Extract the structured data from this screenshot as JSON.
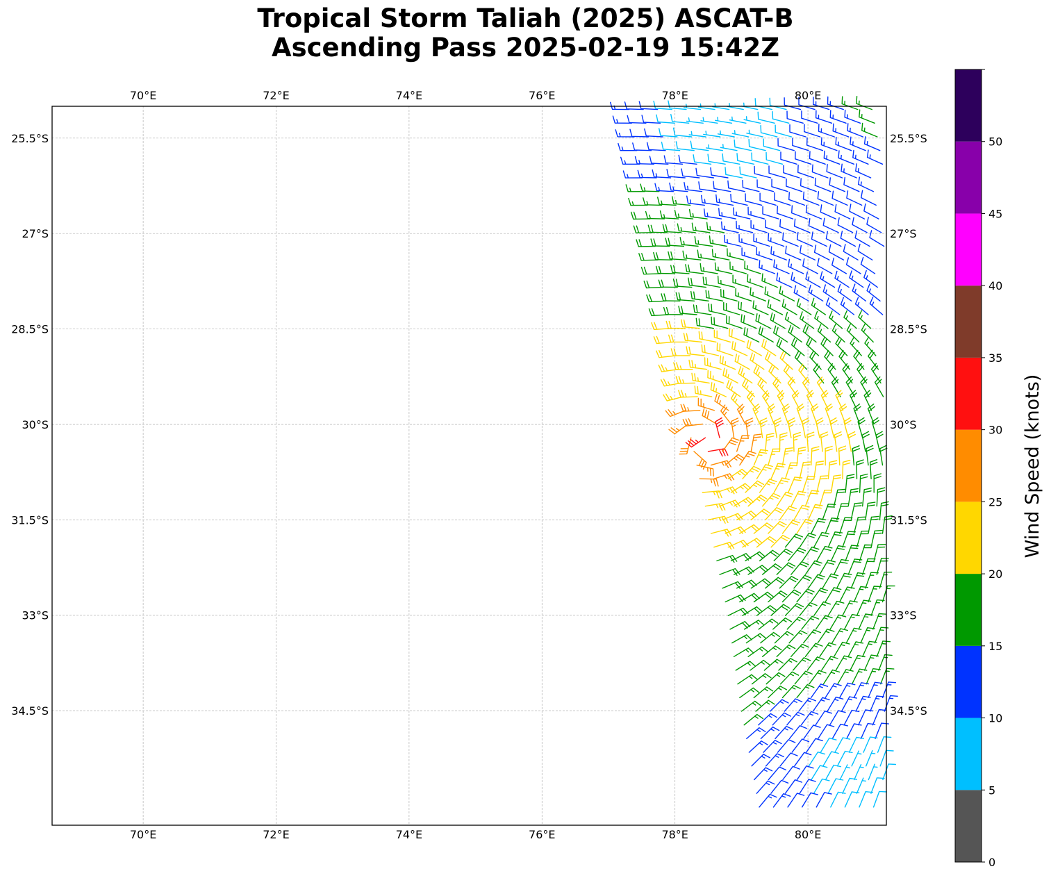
{
  "title": {
    "line1": "Tropical Storm Taliah (2025) ASCAT-B",
    "line2": "Ascending Pass 2025-02-19 15:42Z"
  },
  "map": {
    "lon_range": [
      68.63,
      81.18
    ],
    "lat_range": [
      -36.3,
      -25.0
    ],
    "lon_ticks": [
      {
        "value": 70,
        "label": "70°E"
      },
      {
        "value": 72,
        "label": "72°E"
      },
      {
        "value": 74,
        "label": "74°E"
      },
      {
        "value": 76,
        "label": "76°E"
      },
      {
        "value": 78,
        "label": "78°E"
      },
      {
        "value": 80,
        "label": "80°E"
      }
    ],
    "lat_ticks": [
      {
        "value": -25.5,
        "label": "25.5°S"
      },
      {
        "value": -27.0,
        "label": "27°S"
      },
      {
        "value": -28.5,
        "label": "28.5°S"
      },
      {
        "value": -30.0,
        "label": "30°S"
      },
      {
        "value": -31.5,
        "label": "31.5°S"
      },
      {
        "value": -33.0,
        "label": "33°S"
      },
      {
        "value": -34.5,
        "label": "34.5°S"
      }
    ],
    "gridlines": true,
    "gridline_style": "dashed",
    "swath": {
      "description_from_pixels": "ASCAT-B swath covering the eastern part of the map",
      "west_edge": [
        {
          "lat": -25.0,
          "lon": 77.3
        },
        {
          "lat": -28.0,
          "lon": 77.85
        },
        {
          "lat": -30.0,
          "lon": 78.2
        },
        {
          "lat": -31.5,
          "lon": 78.5
        },
        {
          "lat": -33.0,
          "lon": 78.8
        },
        {
          "lat": -34.5,
          "lon": 79.0
        },
        {
          "lat": -36.2,
          "lon": 79.3
        }
      ],
      "east_edge_lon": 81.18
    },
    "wind_regions": [
      {
        "name": "center",
        "lat": -30.25,
        "lon": 78.5
      },
      {
        "name": "northwest",
        "lat": -26.8,
        "lon": 77.9
      },
      {
        "name": "north",
        "lat": -25.2,
        "lon": 78.8
      },
      {
        "name": "northeast",
        "lat": -27.2,
        "lon": 80.6
      },
      {
        "name": "south",
        "lat": -35.5,
        "lon": 80.2
      },
      {
        "name": "southeast",
        "lat": -35.6,
        "lon": 81.0
      }
    ]
  },
  "colorbar": {
    "label": "Wind Speed (knots)",
    "bounds": [
      0,
      5,
      10,
      15,
      20,
      25,
      30,
      35,
      40,
      45,
      50,
      55
    ],
    "tick_values": [
      0,
      5,
      10,
      15,
      20,
      25,
      30,
      35,
      40,
      45,
      50
    ],
    "tick_labels": [
      "0",
      "5",
      "10",
      "15",
      "20",
      "25",
      "30",
      "35",
      "40",
      "45",
      "50"
    ],
    "colors": [
      "#555555",
      "#00bfff",
      "#0033ff",
      "#009900",
      "#ffd700",
      "#ff8c00",
      "#ff1010",
      "#7f3b2a",
      "#ff00ff",
      "#8800aa",
      "#2d005c"
    ]
  },
  "colors": {
    "grid": "#b0b0b0",
    "frame": "#000000"
  }
}
